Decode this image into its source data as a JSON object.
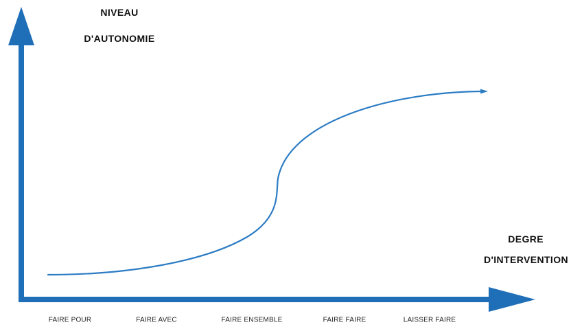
{
  "y_axis": {
    "title_line1": "NIVEAU",
    "title_line2": "D'AUTONOMIE"
  },
  "x_axis": {
    "title_line1": "DEGRE",
    "title_line2": "D'INTERVENTION",
    "steps": [
      "FAIRE POUR",
      "FAIRE AVEC",
      "FAIRE ENSEMBLE",
      "FAIRE FAIRE",
      "LAISSER FAIRE"
    ]
  },
  "colors": {
    "axis": "#1f6fb8",
    "curve": "#2c7cc4",
    "text": "#111111"
  }
}
